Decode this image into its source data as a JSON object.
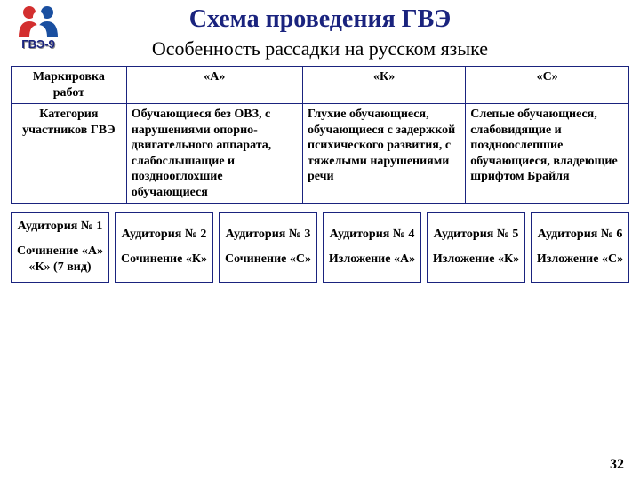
{
  "logo_label": "ГВЭ-9",
  "title_main": "Схема проведения ГВЭ",
  "title_sub": "Особенность рассадки на русском языке",
  "category_table": {
    "row1_label": "Маркировка работ",
    "row2_label": "Категория участников ГВЭ",
    "headers": [
      "«А»",
      "«К»",
      "«С»"
    ],
    "cells": [
      "Обучающиеся без ОВЗ, с нарушениями опорно-двигательного аппарата, слабослышащие и позднооглохшие обучающиеся",
      "Глухие обучающиеся, обучающиеся с задержкой психического развития, с тяжелыми нарушениями речи",
      "Слепые обучающиеся, слабовидящие и поздноослепшие обучающиеся, владеющие шрифтом Брайля"
    ],
    "border_color": "#1a237e",
    "header_fontsize": 14,
    "cell_fontsize": 14
  },
  "audience_boxes": [
    {
      "top": "Аудитория № 1",
      "bottom": "Сочинение «А»\n«К» (7 вид)"
    },
    {
      "top": "Аудитория № 2",
      "bottom": "Сочинение «К»"
    },
    {
      "top": "Аудитория № 3",
      "bottom": "Сочинение «С»"
    },
    {
      "top": "Аудитория № 4",
      "bottom": "Изложение «А»"
    },
    {
      "top": "Аудитория № 5",
      "bottom": "Изложение «К»"
    },
    {
      "top": "Аудитория № 6",
      "bottom": "Изложение «С»"
    }
  ],
  "audience_box_style": {
    "border_color": "#1a237e",
    "border_width": 1.5,
    "font_size": 14,
    "font_weight": "bold"
  },
  "page_number": "32",
  "colors": {
    "primary": "#1a237e",
    "text": "#000000",
    "bg": "#ffffff",
    "logo_red": "#d32f2f",
    "logo_blue": "#1a4fa0"
  }
}
